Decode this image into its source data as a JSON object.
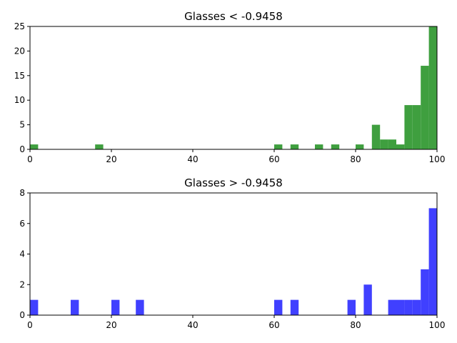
{
  "chart_data": [
    {
      "type": "bar",
      "title": "Glasses < -0.9458",
      "color": "#3f9f3f",
      "xlim": [
        0,
        100
      ],
      "ylim": [
        0,
        25
      ],
      "xticks": [
        0,
        20,
        40,
        60,
        80,
        100
      ],
      "yticks": [
        0,
        5,
        10,
        15,
        20,
        25
      ],
      "bin_width": 2,
      "bins": [
        {
          "x": 0,
          "count": 1
        },
        {
          "x": 16,
          "count": 1
        },
        {
          "x": 60,
          "count": 1
        },
        {
          "x": 64,
          "count": 1
        },
        {
          "x": 70,
          "count": 1
        },
        {
          "x": 74,
          "count": 1
        },
        {
          "x": 80,
          "count": 1
        },
        {
          "x": 84,
          "count": 5
        },
        {
          "x": 86,
          "count": 2
        },
        {
          "x": 88,
          "count": 2
        },
        {
          "x": 90,
          "count": 1
        },
        {
          "x": 92,
          "count": 9
        },
        {
          "x": 94,
          "count": 9
        },
        {
          "x": 96,
          "count": 17
        },
        {
          "x": 98,
          "count": 25
        }
      ]
    },
    {
      "type": "bar",
      "title": "Glasses > -0.9458",
      "color": "#4040ff",
      "xlim": [
        0,
        100
      ],
      "ylim": [
        0,
        8
      ],
      "xticks": [
        0,
        20,
        40,
        60,
        80,
        100
      ],
      "yticks": [
        0,
        2,
        4,
        6,
        8
      ],
      "bin_width": 2,
      "bins": [
        {
          "x": 0,
          "count": 1
        },
        {
          "x": 10,
          "count": 1
        },
        {
          "x": 20,
          "count": 1
        },
        {
          "x": 26,
          "count": 1
        },
        {
          "x": 60,
          "count": 1
        },
        {
          "x": 64,
          "count": 1
        },
        {
          "x": 78,
          "count": 1
        },
        {
          "x": 82,
          "count": 2
        },
        {
          "x": 88,
          "count": 1
        },
        {
          "x": 90,
          "count": 1
        },
        {
          "x": 92,
          "count": 1
        },
        {
          "x": 94,
          "count": 1
        },
        {
          "x": 96,
          "count": 3
        },
        {
          "x": 98,
          "count": 7
        }
      ]
    }
  ]
}
